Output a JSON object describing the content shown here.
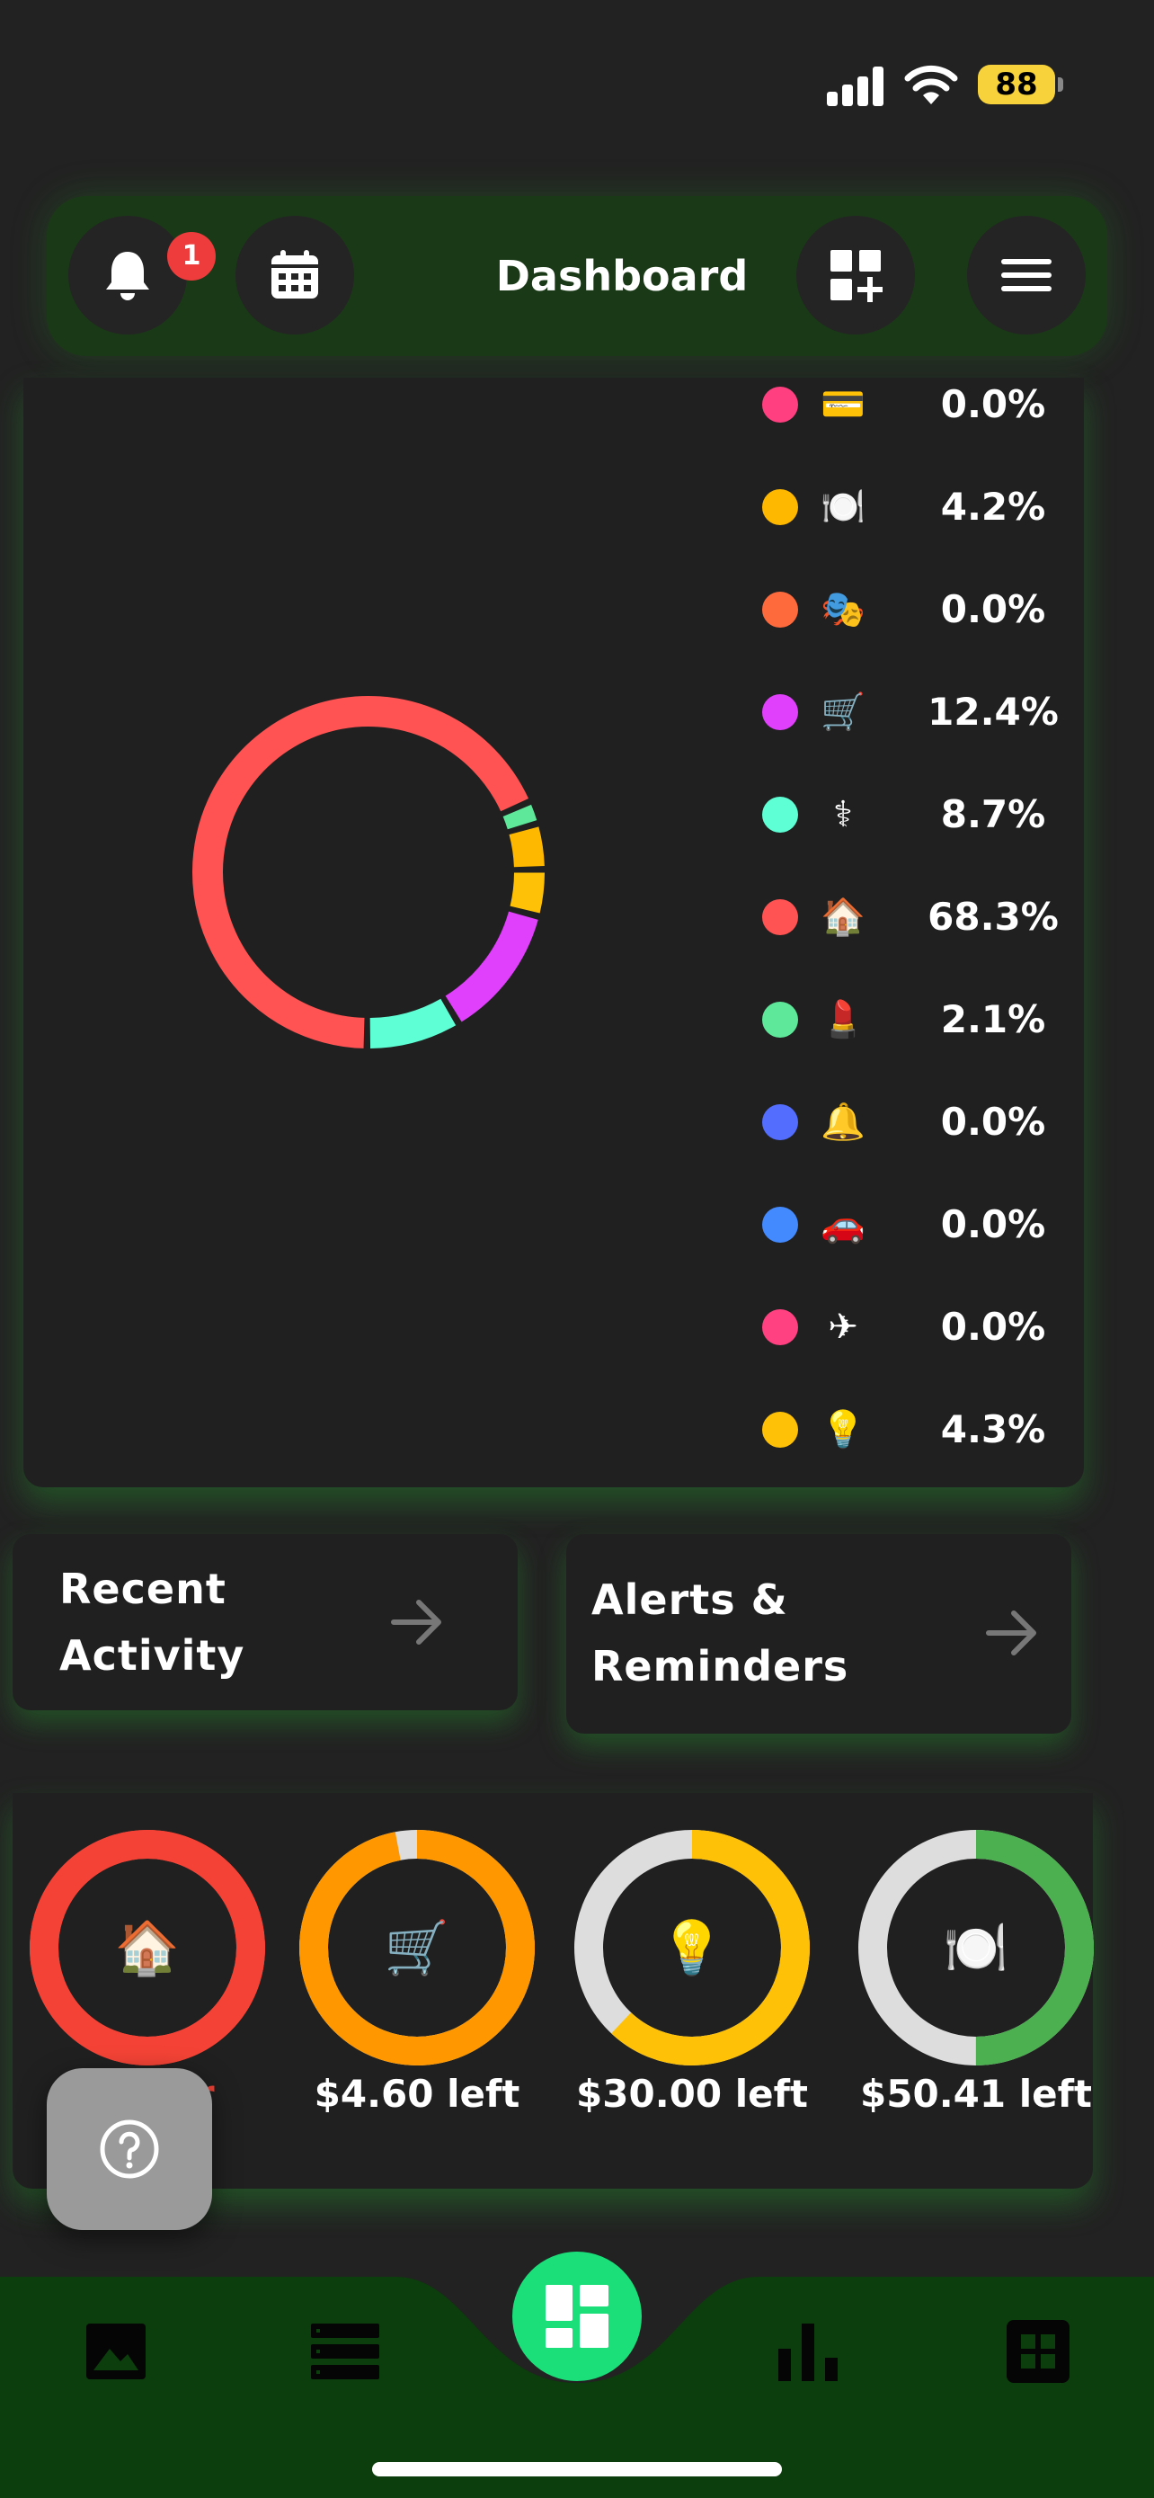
{
  "status_bar": {
    "battery": "88",
    "colors": {
      "battery": "#f7d23a"
    }
  },
  "header": {
    "title": "Dashboard",
    "notification_count": "1",
    "icons": [
      "bell-icon",
      "calendar-icon",
      "add-widget-icon",
      "menu-icon"
    ]
  },
  "chart_data": {
    "type": "pie",
    "style": "donut",
    "slices": [
      {
        "icon": "💳",
        "color": "#ff3f7f",
        "value": 0.0
      },
      {
        "icon": "🍽️",
        "color": "#ffb800",
        "value": 4.2
      },
      {
        "icon": "🎭",
        "color": "#ff6a3d",
        "value": 0.0
      },
      {
        "icon": "🛒",
        "color": "#e040fb",
        "value": 12.4
      },
      {
        "icon": "⚕",
        "color": "#5effd4",
        "value": 8.7
      },
      {
        "icon": "🏠",
        "color": "#ff5252",
        "value": 68.3
      },
      {
        "icon": "💄",
        "color": "#5ee89a",
        "value": 2.1
      },
      {
        "icon": "🔔",
        "color": "#536dfe",
        "value": 0.0
      },
      {
        "icon": "🚗",
        "color": "#448aff",
        "value": 0.0
      },
      {
        "icon": "✈",
        "color": "#ff4081",
        "value": 0.0
      },
      {
        "icon": "💡",
        "color": "#ffc107",
        "value": 4.3
      }
    ]
  },
  "legend": {
    "labels": [
      "0.0%",
      "4.2%",
      "0.0%",
      "12.4%",
      "8.7%",
      "68.3%",
      "2.1%",
      "0.0%",
      "0.0%",
      "0.0%",
      "4.3%"
    ]
  },
  "nav_cards": {
    "recent_activity": {
      "line1": "Recent",
      "line2": "Activity"
    },
    "alerts": {
      "line1": "Alerts &",
      "line2": "Reminders"
    }
  },
  "budgets": [
    {
      "icon": "🏠",
      "label": "$ over",
      "label_visible": "ver",
      "fraction": 1.0,
      "color": "#f44336",
      "track": "#f44336",
      "label_color": "#f44336"
    },
    {
      "icon": "🛒",
      "label": "$4.60 left",
      "fraction": 0.97,
      "color": "#ff9800",
      "track": "#dddddd",
      "label_color": "#ffffff"
    },
    {
      "icon": "💡",
      "label": "$30.00 left",
      "fraction": 0.62,
      "color": "#ffc107",
      "track": "#dddddd",
      "label_color": "#ffffff"
    },
    {
      "icon": "🍽️",
      "label": "$50.41 left",
      "fraction": 0.5,
      "color": "#4caf50",
      "track": "#dddddd",
      "label_color": "#ffffff"
    }
  ],
  "tabbar": {
    "tabs": [
      "gallery-icon",
      "list-icon",
      "dashboard-icon",
      "bar-chart-icon",
      "grid-icon"
    ],
    "colors": {
      "bar": "#0c3d0c",
      "active": "#1be07a"
    }
  }
}
